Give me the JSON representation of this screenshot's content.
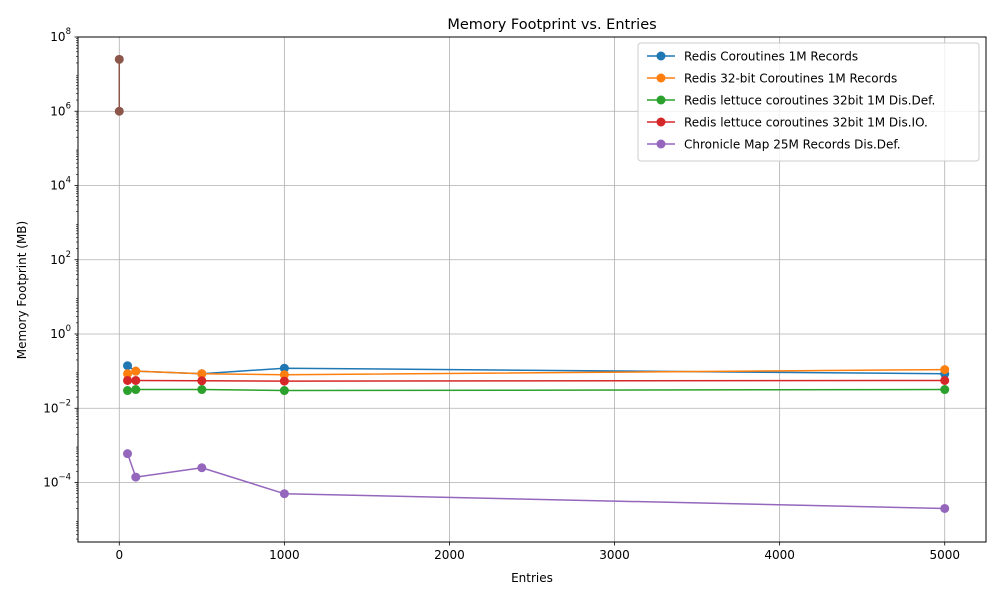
{
  "chart_data": {
    "type": "line",
    "title": "Memory Footprint vs. Entries",
    "xlabel": "Entries",
    "ylabel": "Memory Footprint (MB)",
    "xlim": [
      -250,
      5250
    ],
    "ylim": [
      2.5e-06,
      100000000
    ],
    "yscale": "log",
    "xticks": [
      0,
      1000,
      2000,
      3000,
      4000,
      5000
    ],
    "yticks": [
      {
        "value": 0.0001,
        "mantissa": "10",
        "exponent": "−4"
      },
      {
        "value": 0.01,
        "mantissa": "10",
        "exponent": "−2"
      },
      {
        "value": 1,
        "mantissa": "10",
        "exponent": "0"
      },
      {
        "value": 100,
        "mantissa": "10",
        "exponent": "2"
      },
      {
        "value": 10000,
        "mantissa": "10",
        "exponent": "4"
      },
      {
        "value": 1000000,
        "mantissa": "10",
        "exponent": "6"
      },
      {
        "value": 100000000,
        "mantissa": "10",
        "exponent": "8"
      }
    ],
    "grid": true,
    "legend_position": "top-right",
    "series": [
      {
        "name": "Redis Coroutines 1M Records",
        "color": "#1f77b4",
        "in_legend": true,
        "x": [
          50,
          100,
          500,
          1000,
          5000
        ],
        "y": [
          0.14,
          0.1,
          0.085,
          0.12,
          0.085
        ]
      },
      {
        "name": "Redis 32-bit Coroutines 1M Records",
        "color": "#ff7f0e",
        "in_legend": true,
        "x": [
          50,
          100,
          500,
          1000,
          5000
        ],
        "y": [
          0.085,
          0.1,
          0.085,
          0.08,
          0.11
        ]
      },
      {
        "name": "Redis lettuce coroutines 32bit 1M Dis.Def.",
        "color": "#2ca02c",
        "in_legend": true,
        "x": [
          50,
          100,
          500,
          1000,
          5000
        ],
        "y": [
          0.03,
          0.032,
          0.032,
          0.03,
          0.032
        ]
      },
      {
        "name": "Redis lettuce coroutines 32bit 1M Dis.IO.",
        "color": "#d62728",
        "in_legend": true,
        "x": [
          50,
          100,
          500,
          1000,
          5000
        ],
        "y": [
          0.056,
          0.056,
          0.055,
          0.054,
          0.056
        ]
      },
      {
        "name": "Chronicle Map 25M Records Dis.Def.",
        "color": "#9467bd",
        "in_legend": true,
        "x": [
          50,
          100,
          500,
          1000,
          5000
        ],
        "y": [
          0.0006,
          0.00014,
          0.00025,
          5e-05,
          2e-05
        ]
      },
      {
        "name": "",
        "color": "#8c564b",
        "in_legend": false,
        "x": [
          0,
          0
        ],
        "y": [
          25000000,
          1000000
        ]
      }
    ]
  }
}
